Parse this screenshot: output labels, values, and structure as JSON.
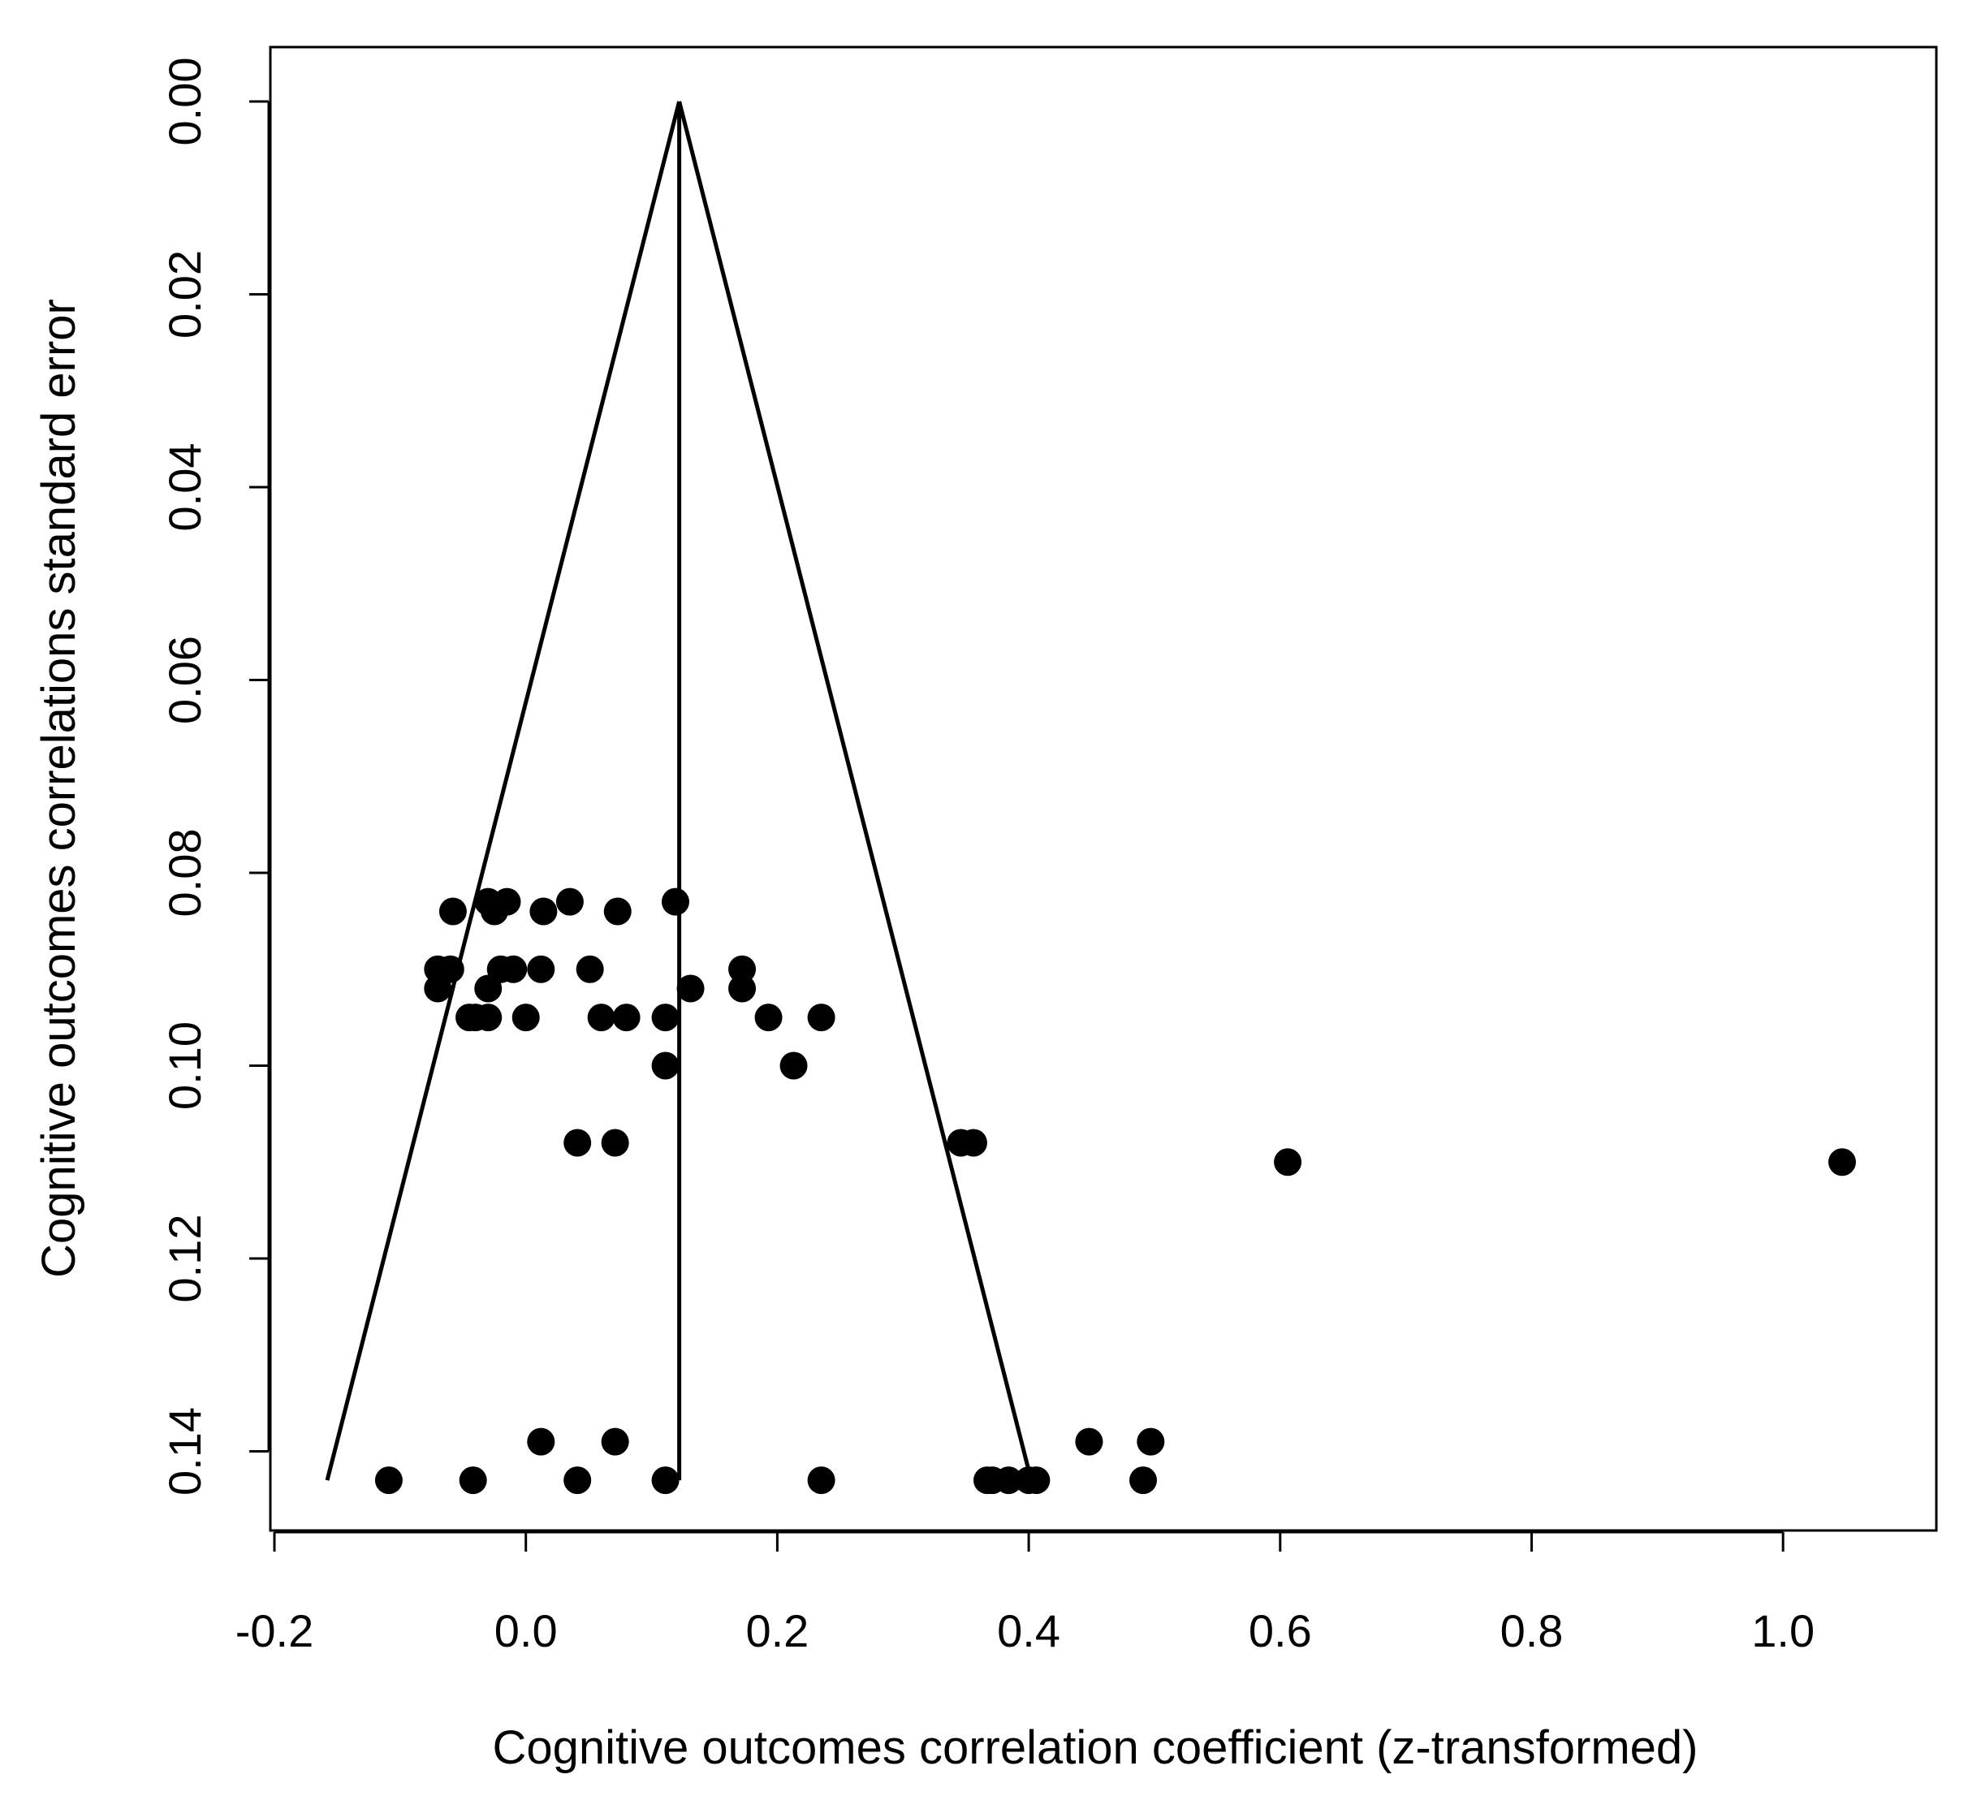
{
  "chart_data": {
    "type": "scatter",
    "subtype": "funnel",
    "title": "",
    "xlabel": "Cognitive outcomes correlation coefficient (z-transformed)",
    "ylabel": "Cognitive outcomes correlations standard error",
    "xlim": [
      -0.2,
      1.12
    ],
    "ylim": [
      0.0,
      0.148
    ],
    "y_inverted": true,
    "grid": false,
    "legend": "none",
    "x_ticks": [
      "-0.2",
      "0.0",
      "0.2",
      "0.4",
      "0.6",
      "0.8",
      "1.0"
    ],
    "y_ticks": [
      "0.00",
      "0.02",
      "0.04",
      "0.06",
      "0.08",
      "0.10",
      "0.12",
      "0.14"
    ],
    "funnel": {
      "center": 0.122,
      "apex_se": 0.0,
      "base_se": 0.143,
      "left_base": -0.158,
      "right_base": 0.402
    },
    "colors": {
      "points": "#000000",
      "lines": "#000000",
      "background": "#ffffff"
    },
    "points": [
      {
        "x": -0.109,
        "y": 0.143
      },
      {
        "x": -0.042,
        "y": 0.143
      },
      {
        "x": 0.041,
        "y": 0.143
      },
      {
        "x": 0.111,
        "y": 0.143
      },
      {
        "x": 0.235,
        "y": 0.143
      },
      {
        "x": 0.367,
        "y": 0.143
      },
      {
        "x": 0.371,
        "y": 0.143
      },
      {
        "x": 0.384,
        "y": 0.143
      },
      {
        "x": 0.4,
        "y": 0.143
      },
      {
        "x": 0.406,
        "y": 0.143
      },
      {
        "x": 0.491,
        "y": 0.143
      },
      {
        "x": 0.012,
        "y": 0.139
      },
      {
        "x": 0.071,
        "y": 0.139
      },
      {
        "x": 0.448,
        "y": 0.139
      },
      {
        "x": 0.497,
        "y": 0.139
      },
      {
        "x": 0.606,
        "y": 0.11
      },
      {
        "x": 1.047,
        "y": 0.11
      },
      {
        "x": 0.041,
        "y": 0.108
      },
      {
        "x": 0.071,
        "y": 0.108
      },
      {
        "x": 0.346,
        "y": 0.108
      },
      {
        "x": 0.356,
        "y": 0.108
      },
      {
        "x": 0.111,
        "y": 0.1
      },
      {
        "x": 0.213,
        "y": 0.1
      },
      {
        "x": -0.045,
        "y": 0.095
      },
      {
        "x": -0.04,
        "y": 0.095
      },
      {
        "x": -0.03,
        "y": 0.095
      },
      {
        "x": 0.0,
        "y": 0.095
      },
      {
        "x": 0.06,
        "y": 0.095
      },
      {
        "x": 0.08,
        "y": 0.095
      },
      {
        "x": 0.111,
        "y": 0.095
      },
      {
        "x": 0.193,
        "y": 0.095
      },
      {
        "x": 0.235,
        "y": 0.095
      },
      {
        "x": -0.07,
        "y": 0.092
      },
      {
        "x": -0.03,
        "y": 0.092
      },
      {
        "x": 0.131,
        "y": 0.092
      },
      {
        "x": 0.172,
        "y": 0.092
      },
      {
        "x": -0.07,
        "y": 0.09
      },
      {
        "x": -0.06,
        "y": 0.09
      },
      {
        "x": -0.02,
        "y": 0.09
      },
      {
        "x": -0.01,
        "y": 0.09
      },
      {
        "x": 0.012,
        "y": 0.09
      },
      {
        "x": 0.051,
        "y": 0.09
      },
      {
        "x": 0.172,
        "y": 0.09
      },
      {
        "x": -0.058,
        "y": 0.084
      },
      {
        "x": -0.025,
        "y": 0.084
      },
      {
        "x": 0.014,
        "y": 0.084
      },
      {
        "x": 0.073,
        "y": 0.084
      },
      {
        "x": -0.03,
        "y": 0.083
      },
      {
        "x": -0.015,
        "y": 0.083
      },
      {
        "x": 0.035,
        "y": 0.083
      },
      {
        "x": 0.119,
        "y": 0.083
      }
    ]
  }
}
